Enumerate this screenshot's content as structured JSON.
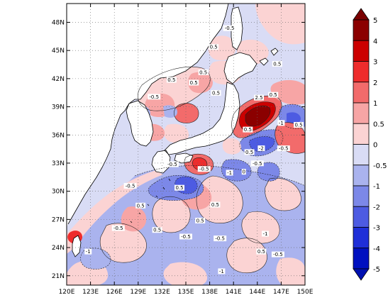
{
  "map": {
    "lon_ticks": [
      "120E",
      "123E",
      "126E",
      "129E",
      "132E",
      "135E",
      "138E",
      "141E",
      "144E",
      "147E",
      "150E"
    ],
    "lat_ticks": [
      "21N",
      "24N",
      "27N",
      "30N",
      "33N",
      "36N",
      "39N",
      "42N",
      "45N",
      "48N"
    ],
    "lon_range": [
      120,
      150
    ],
    "lat_range": [
      20,
      50
    ],
    "grid": "dotted"
  },
  "colorbar": {
    "labels": [
      "5",
      "4",
      "3",
      "2",
      "1",
      "0.5",
      "0",
      "-0.5",
      "-1",
      "-2",
      "-3",
      "-4",
      "-5"
    ],
    "colors": [
      "#8b0000",
      "#cc0000",
      "#ee2c2c",
      "#f26b6b",
      "#f7a5a5",
      "#fbd3d3",
      "#d9dcf5",
      "#aab3ee",
      "#7c88e8",
      "#4d5be2",
      "#1f2fd8",
      "#0010c0"
    ],
    "upper_arrow_color": "#7a0000",
    "lower_arrow_color": "#0010b0"
  },
  "contour_labels": [
    {
      "text": "-0.5",
      "lon": 140.5,
      "lat": 47.3
    },
    {
      "text": "0.5",
      "lon": 138.5,
      "lat": 45.3
    },
    {
      "text": "0.5",
      "lon": 137.2,
      "lat": 42.6
    },
    {
      "text": "0.5",
      "lon": 136.0,
      "lat": 41.5
    },
    {
      "text": "0.5",
      "lon": 133.2,
      "lat": 41.8
    },
    {
      "text": "0.5",
      "lon": 138.8,
      "lat": 40.4
    },
    {
      "text": "-0.5",
      "lon": 131.0,
      "lat": 40.0
    },
    {
      "text": "0.5",
      "lon": 146.5,
      "lat": 43.5
    },
    {
      "text": "0.5",
      "lon": 146.0,
      "lat": 40.2
    },
    {
      "text": "2.5",
      "lon": 144.2,
      "lat": 39.9
    },
    {
      "text": "-1",
      "lon": 147.0,
      "lat": 37.2
    },
    {
      "text": "0.5",
      "lon": 149.2,
      "lat": 37.0
    },
    {
      "text": "0.5",
      "lon": 142.8,
      "lat": 36.5
    },
    {
      "text": "-2",
      "lon": 144.5,
      "lat": 34.5
    },
    {
      "text": "-0.5",
      "lon": 147.3,
      "lat": 34.5
    },
    {
      "text": "0.5",
      "lon": 143.0,
      "lat": 34.1
    },
    {
      "text": "-0.5",
      "lon": 144.0,
      "lat": 32.9
    },
    {
      "text": "-1",
      "lon": 140.5,
      "lat": 31.9
    },
    {
      "text": "-0.5",
      "lon": 133.3,
      "lat": 32.8
    },
    {
      "text": "-0.5",
      "lon": 137.3,
      "lat": 32.3
    },
    {
      "text": "0.5",
      "lon": 134.2,
      "lat": 30.3
    },
    {
      "text": "0.5",
      "lon": 138.7,
      "lat": 28.5
    },
    {
      "text": "-0.5",
      "lon": 128.0,
      "lat": 30.5
    },
    {
      "text": "0.5",
      "lon": 129.3,
      "lat": 28.4
    },
    {
      "text": "-0.5",
      "lon": 126.5,
      "lat": 26.0
    },
    {
      "text": "0.5",
      "lon": 131.4,
      "lat": 25.8
    },
    {
      "text": "-0.5",
      "lon": 135.0,
      "lat": 25.1
    },
    {
      "text": "0.5",
      "lon": 136.8,
      "lat": 26.8
    },
    {
      "text": "-0.5",
      "lon": 139.3,
      "lat": 24.9
    },
    {
      "text": "-1",
      "lon": 145.0,
      "lat": 25.4
    },
    {
      "text": "0.5",
      "lon": 144.5,
      "lat": 23.5
    },
    {
      "text": "-0.5",
      "lon": 146.6,
      "lat": 23.2
    },
    {
      "text": "-1",
      "lon": 122.7,
      "lat": 23.5
    },
    {
      "text": "-1",
      "lon": 139.5,
      "lat": 21.4
    },
    {
      "text": "0",
      "lon": 142.3,
      "lat": 32.0
    }
  ]
}
